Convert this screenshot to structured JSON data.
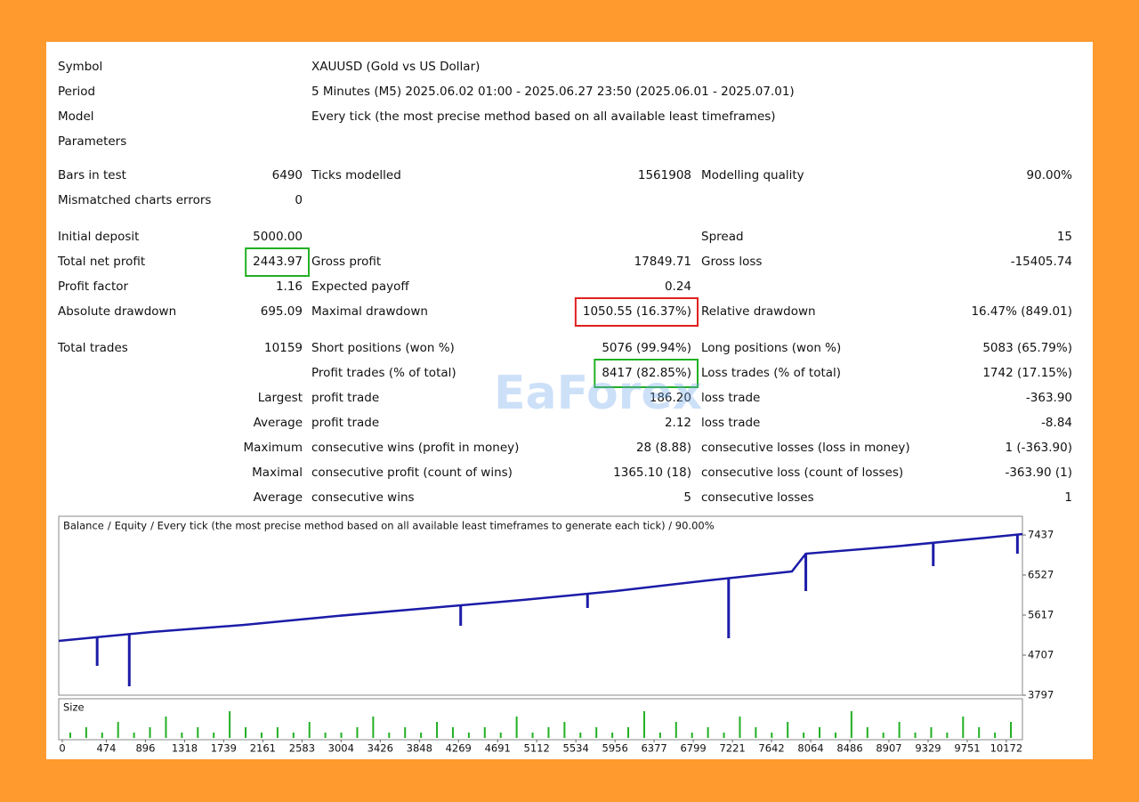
{
  "report": {
    "header_rows": [
      {
        "label": "Symbol",
        "value": "XAUUSD (Gold vs US Dollar)"
      },
      {
        "label": "Period",
        "value": "5 Minutes (M5) 2025.06.02 01:00 - 2025.06.27 23:50 (2025.06.01 - 2025.07.01)"
      },
      {
        "label": "Model",
        "value": "Every tick (the most precise method based on all available least timeframes)"
      },
      {
        "label": "Parameters"
      }
    ],
    "sections": [
      {
        "rows": [
          {
            "cells": [
              "Bars in test",
              "6490",
              "Ticks modelled",
              "1561908",
              "Modelling quality",
              "90.00%"
            ]
          },
          {
            "cells": [
              "Mismatched charts errors",
              "0",
              null,
              null,
              null,
              null
            ]
          }
        ]
      },
      {
        "rows": [
          {
            "cells": [
              "Initial deposit",
              "5000.00",
              null,
              null,
              "Spread",
              "15"
            ]
          },
          {
            "cells": [
              "Total net profit",
              "2443.97",
              "Gross profit",
              "17849.71",
              "Gross loss",
              "-15405.74"
            ],
            "highlight": {
              "cell": 1,
              "color": "#22b022"
            }
          },
          {
            "cells": [
              "Profit factor",
              "1.16",
              "Expected payoff",
              "0.24",
              null,
              null
            ]
          },
          {
            "cells": [
              "Absolute drawdown",
              "695.09",
              "Maximal drawdown",
              "1050.55 (16.37%)",
              "Relative drawdown",
              "16.47% (849.01)"
            ],
            "highlight": {
              "cell": 3,
              "color": "#e02020"
            }
          }
        ]
      },
      {
        "rows": [
          {
            "cells": [
              "Total trades",
              "10159",
              "Short positions (won %)",
              "5076 (99.94%)",
              "Long positions (won %)",
              "5083 (65.79%)"
            ]
          },
          {
            "cells": [
              null,
              null,
              "Profit trades (% of total)",
              "8417 (82.85%)",
              "Loss trades (% of total)",
              "1742 (17.15%)"
            ],
            "highlight": {
              "cell": 3,
              "color": "#22b022"
            }
          },
          {
            "cells": [
              null,
              "Largest",
              "profit trade",
              "186.20",
              "loss trade",
              "-363.90"
            ]
          },
          {
            "cells": [
              null,
              "Average",
              "profit trade",
              "2.12",
              "loss trade",
              "-8.84"
            ]
          },
          {
            "cells": [
              null,
              "Maximum",
              "consecutive wins (profit in money)",
              "28 (8.88)",
              "consecutive losses (loss in money)",
              "1 (-363.90)"
            ]
          },
          {
            "cells": [
              null,
              "Maximal",
              "consecutive profit (count of wins)",
              "1365.10 (18)",
              "consecutive loss (count of losses)",
              "-363.90 (1)"
            ]
          },
          {
            "cells": [
              null,
              "Average",
              "consecutive wins",
              "5",
              "consecutive losses",
              "1"
            ]
          }
        ]
      }
    ],
    "watermark": "EaForex"
  },
  "chart_data": {
    "type": "line",
    "legend_separator": "/",
    "legend_note": "/ Every tick (the most precise method based on all available least timeframes to generate each tick) / 90.00%",
    "size_label": "Size",
    "xlim": [
      0,
      10384
    ],
    "ylim": [
      3797,
      7862
    ],
    "xticks": [
      0,
      474,
      896,
      1318,
      1739,
      2161,
      2583,
      3004,
      3426,
      3848,
      4269,
      4691,
      5112,
      5534,
      5956,
      6377,
      6799,
      7221,
      7642,
      8064,
      8486,
      8907,
      9329,
      9751,
      10172
    ],
    "yticks": [
      3797,
      4707,
      5617,
      6527,
      7437
    ],
    "series": [
      {
        "name": "Balance",
        "color": "#1c1ca8",
        "x": [
          0,
          1000,
          2000,
          3000,
          4000,
          5000,
          6000,
          7000,
          7900,
          8050,
          9000,
          10000,
          10384
        ],
        "values": [
          5031,
          5233,
          5394,
          5597,
          5779,
          5961,
          6163,
          6406,
          6608,
          7012,
          7174,
          7376,
          7457
        ]
      },
      {
        "name": "Equity",
        "color": "#22a022",
        "drop_color": "#1c1ca8",
        "x": [
          414,
          760,
          4331,
          5698,
          7218,
          8050,
          9423,
          10330
        ],
        "values": [
          4464,
          3999,
          5374,
          5779,
          5091,
          6163,
          6729,
          7012
        ]
      }
    ],
    "size_color": "#22b022",
    "size_values": [
      1,
      2,
      1,
      3,
      1,
      2,
      4,
      1,
      2,
      1,
      5,
      2,
      1,
      2,
      1,
      3,
      1,
      1,
      2,
      4,
      1,
      2,
      1,
      3,
      2,
      1,
      2,
      1,
      4,
      1,
      2,
      3,
      1,
      2,
      1,
      2,
      5,
      1,
      3,
      1,
      2,
      1,
      4,
      2,
      1,
      3,
      1,
      2,
      1,
      5,
      2,
      1,
      3,
      1,
      2,
      1,
      4,
      2,
      1,
      3
    ]
  }
}
